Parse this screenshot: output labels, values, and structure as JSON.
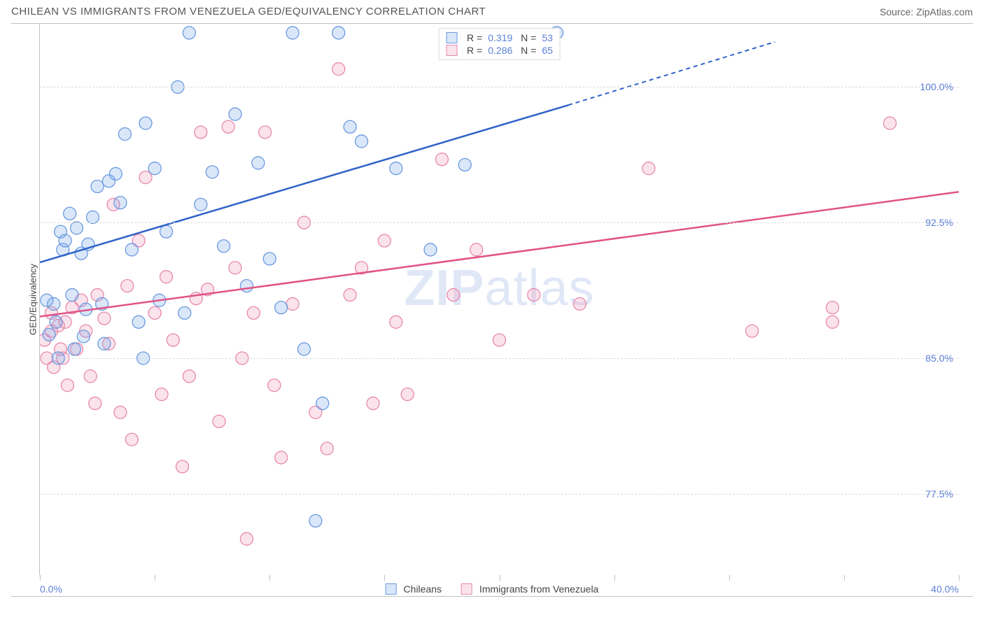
{
  "title": "CHILEAN VS IMMIGRANTS FROM VENEZUELA GED/EQUIVALENCY CORRELATION CHART",
  "source": "Source: ZipAtlas.com",
  "y_axis_label": "GED/Equivalency",
  "watermark": {
    "bold": "ZIP",
    "rest": "atlas"
  },
  "chart": {
    "type": "scatter",
    "xlim": [
      0,
      40
    ],
    "ylim": [
      73,
      103.5
    ],
    "yticks": [
      77.5,
      85.0,
      92.5,
      100.0
    ],
    "ytick_labels": [
      "77.5%",
      "85.0%",
      "92.5%",
      "100.0%"
    ],
    "xticks": [
      0,
      5,
      10,
      15,
      20,
      25,
      30,
      35,
      40
    ],
    "xtick_labels": {
      "0": "0.0%",
      "40": "40.0%"
    },
    "grid_color": "#dcdcdc",
    "axis_color": "#c0c0c0",
    "background_color": "#ffffff"
  },
  "series": {
    "blue": {
      "label": "Chileans",
      "color": "#7aa9ea",
      "fill": "rgba(122,169,234,0.28)",
      "stroke": "#6a9ae0",
      "line_color": "#2f62c9",
      "R": "0.319",
      "N": "53",
      "regression": {
        "x1": 0,
        "y1": 90.3,
        "x2_solid": 23,
        "y2_solid": 99.0,
        "x2_dash": 32,
        "y2_dash": 102.5
      },
      "points": [
        [
          0.3,
          88.2
        ],
        [
          0.4,
          86.3
        ],
        [
          0.6,
          88.0
        ],
        [
          0.7,
          87.0
        ],
        [
          0.9,
          92.0
        ],
        [
          1.0,
          91.0
        ],
        [
          1.1,
          91.5
        ],
        [
          1.3,
          93.0
        ],
        [
          1.4,
          88.5
        ],
        [
          1.6,
          92.2
        ],
        [
          1.8,
          90.8
        ],
        [
          1.9,
          86.2
        ],
        [
          2.0,
          87.7
        ],
        [
          2.1,
          91.3
        ],
        [
          2.3,
          92.8
        ],
        [
          2.5,
          94.5
        ],
        [
          2.7,
          88.0
        ],
        [
          3.0,
          94.8
        ],
        [
          3.3,
          95.2
        ],
        [
          3.5,
          93.6
        ],
        [
          3.7,
          97.4
        ],
        [
          4.0,
          91.0
        ],
        [
          4.3,
          87.0
        ],
        [
          4.6,
          98.0
        ],
        [
          5.0,
          95.5
        ],
        [
          5.2,
          88.2
        ],
        [
          5.5,
          92.0
        ],
        [
          6.0,
          100.0
        ],
        [
          6.3,
          87.5
        ],
        [
          6.5,
          103.0
        ],
        [
          7.0,
          93.5
        ],
        [
          7.5,
          95.3
        ],
        [
          8.0,
          91.2
        ],
        [
          8.5,
          98.5
        ],
        [
          9.0,
          89.0
        ],
        [
          9.5,
          95.8
        ],
        [
          10.0,
          90.5
        ],
        [
          10.5,
          87.8
        ],
        [
          11.0,
          103.0
        ],
        [
          11.5,
          85.5
        ],
        [
          12.0,
          76.0
        ],
        [
          12.3,
          82.5
        ],
        [
          13.0,
          103.0
        ],
        [
          13.5,
          97.8
        ],
        [
          14.0,
          97.0
        ],
        [
          15.5,
          95.5
        ],
        [
          17.0,
          91.0
        ],
        [
          18.5,
          95.7
        ],
        [
          22.5,
          103.0
        ],
        [
          0.8,
          85.0
        ],
        [
          1.5,
          85.5
        ],
        [
          2.8,
          85.8
        ],
        [
          4.5,
          85.0
        ]
      ]
    },
    "pink": {
      "label": "Immigants from Venezuela",
      "label_display": "Immigrants from Venezuela",
      "color": "#f09abb",
      "fill": "rgba(240,154,187,0.28)",
      "stroke": "#e888ad",
      "line_color": "#e15286",
      "R": "0.286",
      "N": "65",
      "regression": {
        "x1": 0,
        "y1": 87.3,
        "x2": 40,
        "y2": 94.2
      },
      "points": [
        [
          0.2,
          86.0
        ],
        [
          0.3,
          85.0
        ],
        [
          0.5,
          87.5
        ],
        [
          0.6,
          84.5
        ],
        [
          0.8,
          86.8
        ],
        [
          1.0,
          85.0
        ],
        [
          1.1,
          87.0
        ],
        [
          1.4,
          87.8
        ],
        [
          1.6,
          85.5
        ],
        [
          1.8,
          88.2
        ],
        [
          2.0,
          86.5
        ],
        [
          2.2,
          84.0
        ],
        [
          2.5,
          88.5
        ],
        [
          2.8,
          87.2
        ],
        [
          3.0,
          85.8
        ],
        [
          3.2,
          93.5
        ],
        [
          3.5,
          82.0
        ],
        [
          3.8,
          89.0
        ],
        [
          4.0,
          80.5
        ],
        [
          4.3,
          91.5
        ],
        [
          4.6,
          95.0
        ],
        [
          5.0,
          87.5
        ],
        [
          5.3,
          83.0
        ],
        [
          5.5,
          89.5
        ],
        [
          5.8,
          86.0
        ],
        [
          6.2,
          79.0
        ],
        [
          6.5,
          84.0
        ],
        [
          7.0,
          97.5
        ],
        [
          7.3,
          88.8
        ],
        [
          7.8,
          81.5
        ],
        [
          8.2,
          97.8
        ],
        [
          8.5,
          90.0
        ],
        [
          9.0,
          75.0
        ],
        [
          9.3,
          87.5
        ],
        [
          9.8,
          97.5
        ],
        [
          10.2,
          83.5
        ],
        [
          10.5,
          79.5
        ],
        [
          11.0,
          88.0
        ],
        [
          11.5,
          92.5
        ],
        [
          12.0,
          82.0
        ],
        [
          12.5,
          80.0
        ],
        [
          13.0,
          101.0
        ],
        [
          13.5,
          88.5
        ],
        [
          14.0,
          90.0
        ],
        [
          14.5,
          82.5
        ],
        [
          15.0,
          91.5
        ],
        [
          15.5,
          87.0
        ],
        [
          16.0,
          83.0
        ],
        [
          17.5,
          96.0
        ],
        [
          18.0,
          88.5
        ],
        [
          19.0,
          91.0
        ],
        [
          20.0,
          86.0
        ],
        [
          21.5,
          88.5
        ],
        [
          23.5,
          88.0
        ],
        [
          26.5,
          95.5
        ],
        [
          31.0,
          86.5
        ],
        [
          34.5,
          87.0
        ],
        [
          34.5,
          87.8
        ],
        [
          37.0,
          98.0
        ],
        [
          1.2,
          83.5
        ],
        [
          2.4,
          82.5
        ],
        [
          0.5,
          86.5
        ],
        [
          0.9,
          85.5
        ],
        [
          6.8,
          88.3
        ],
        [
          8.8,
          85.0
        ]
      ]
    }
  },
  "legend_bottom": [
    {
      "label": "Chileans",
      "key": "blue"
    },
    {
      "label": "Immigrants from Venezuela",
      "key": "pink"
    }
  ]
}
